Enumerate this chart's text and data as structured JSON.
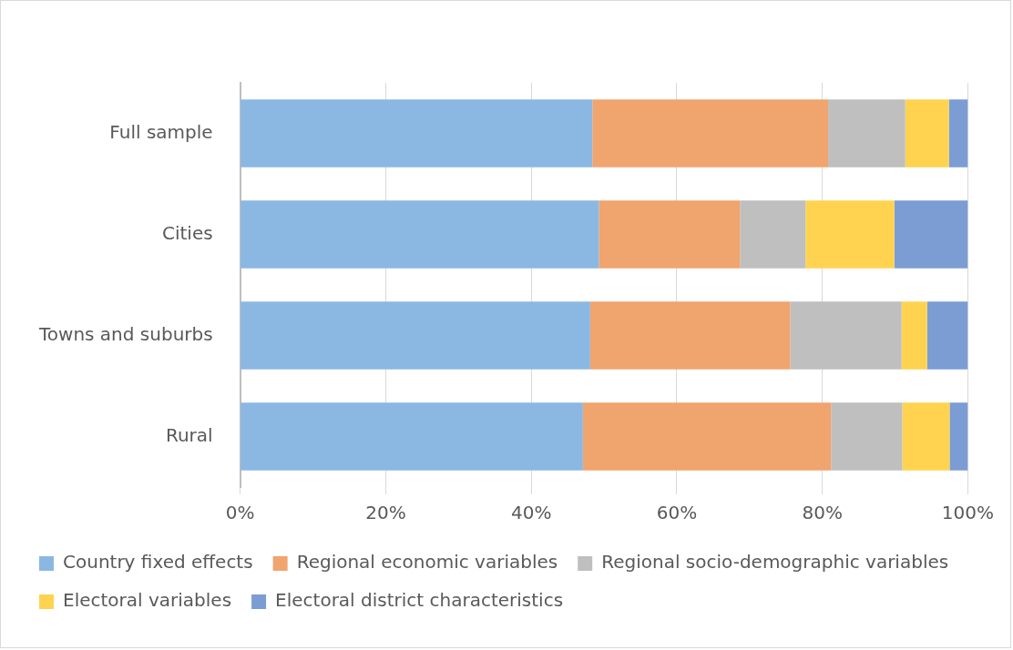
{
  "chart_data": {
    "type": "bar",
    "orientation": "horizontal",
    "stacked": true,
    "categories": [
      "Full sample",
      "Cities",
      "Towns and suburbs",
      "Rural"
    ],
    "series": [
      {
        "name": "Country fixed effects",
        "color": "#8bb8e2",
        "values": [
          48.4,
          49.3,
          48.1,
          47.1
        ]
      },
      {
        "name": "Regional economic variables",
        "color": "#f0a46e",
        "values": [
          32.4,
          19.4,
          27.5,
          34.1
        ]
      },
      {
        "name": "Regional socio-demographic variables",
        "color": "#bfbfbf",
        "values": [
          10.6,
          9.0,
          15.3,
          9.8
        ]
      },
      {
        "name": "Electoral variables",
        "color": "#ffd34f",
        "values": [
          6.0,
          12.2,
          3.5,
          6.5
        ]
      },
      {
        "name": "Electoral district characteristics",
        "color": "#7b9dd4",
        "values": [
          2.6,
          10.1,
          5.6,
          2.5
        ]
      }
    ],
    "xlim": [
      0,
      100
    ],
    "xticks": [
      {
        "value": 0,
        "label": "0%"
      },
      {
        "value": 20,
        "label": "20%"
      },
      {
        "value": 40,
        "label": "40%"
      },
      {
        "value": 60,
        "label": "60%"
      },
      {
        "value": 80,
        "label": "80%"
      },
      {
        "value": 100,
        "label": "100%"
      }
    ],
    "grid": "x",
    "legend": "bottom"
  }
}
